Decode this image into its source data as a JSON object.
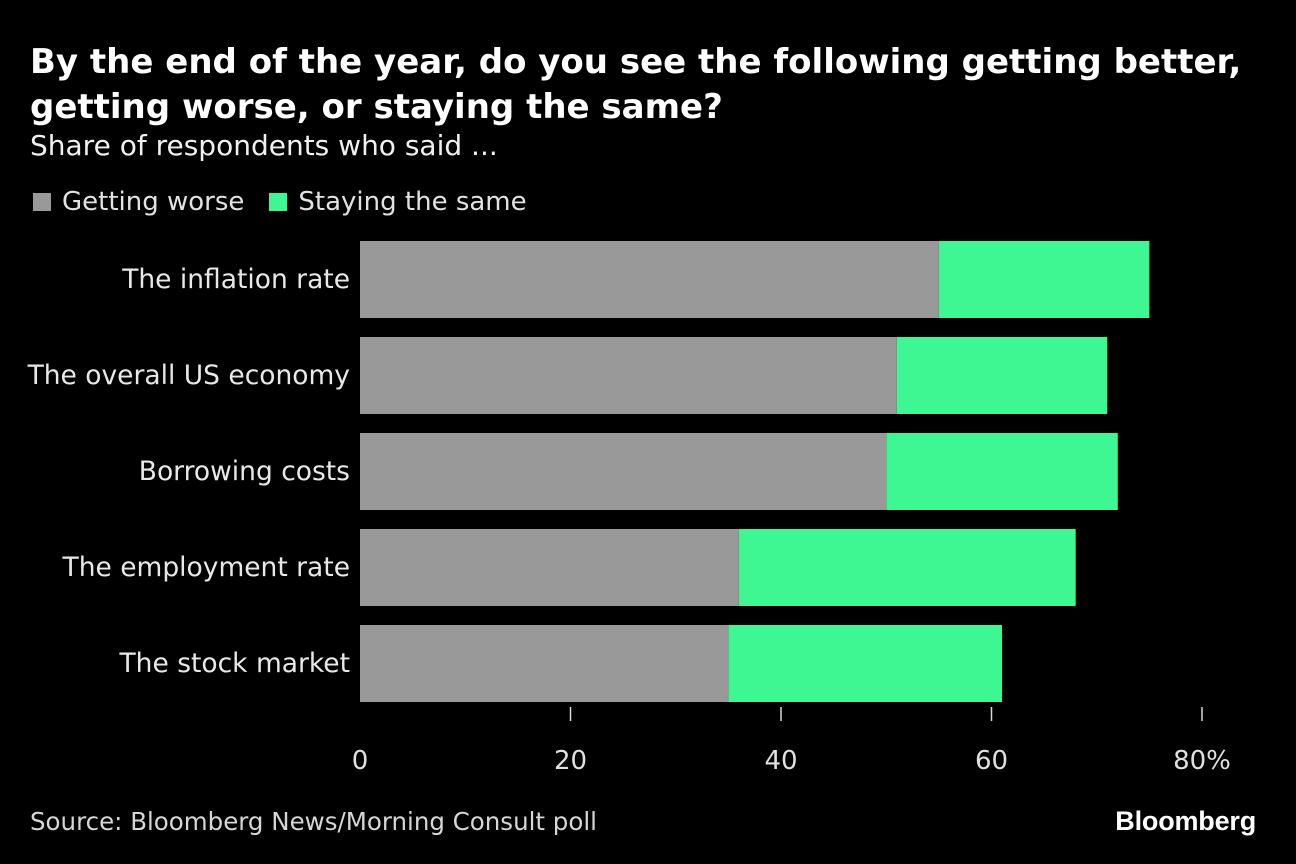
{
  "chart_data": {
    "type": "bar",
    "horizontal": true,
    "stacked": true,
    "title": "By the end of the year, do you see the following getting better, getting worse, or staying the same?",
    "subtitle": "Share of respondents who said ...",
    "categories": [
      "The inflation rate",
      "The overall US economy",
      "Borrowing costs",
      "The employment rate",
      "The stock market"
    ],
    "series": [
      {
        "name": "Getting worse",
        "color": "#999999",
        "values": [
          55,
          51,
          50,
          36,
          35
        ]
      },
      {
        "name": "Staying the same",
        "color": "#3ef692",
        "values": [
          20,
          20,
          22,
          32,
          26
        ]
      }
    ],
    "xlim": [
      0,
      80
    ],
    "x_ticks": [
      0,
      20,
      40,
      60,
      80
    ],
    "x_tick_labels": [
      "0",
      "20",
      "40",
      "60",
      "80%"
    ],
    "xlabel": "",
    "ylabel": "",
    "legend_position": "top-left",
    "grid": false
  },
  "footer": {
    "source": "Source: Bloomberg News/Morning Consult poll",
    "brand": "Bloomberg"
  }
}
